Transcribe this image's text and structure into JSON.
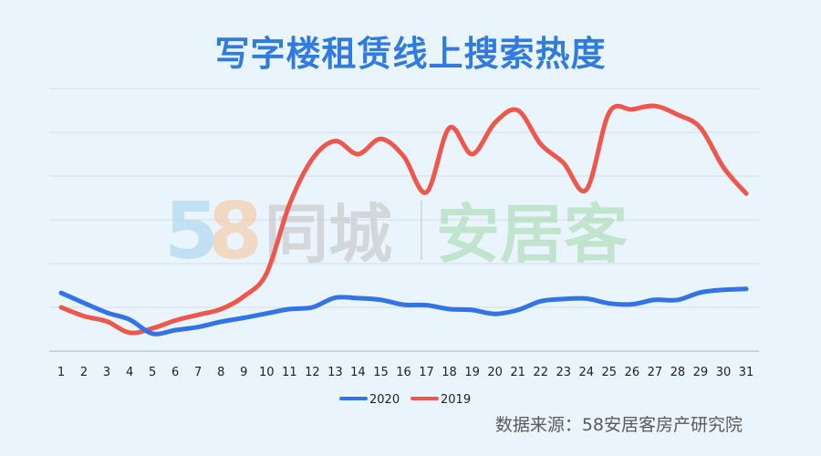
{
  "chart_data": {
    "type": "line",
    "title": "写字楼租赁线上搜索热度",
    "x": [
      "1",
      "2",
      "3",
      "4",
      "5",
      "6",
      "7",
      "8",
      "9",
      "10",
      "11",
      "12",
      "13",
      "14",
      "15",
      "16",
      "17",
      "18",
      "19",
      "20",
      "21",
      "22",
      "23",
      "24",
      "25",
      "26",
      "27",
      "28",
      "29",
      "30",
      "31"
    ],
    "ylim": [
      0,
      6
    ],
    "grid": true,
    "legend_position": "bottom",
    "series": [
      {
        "name": "2020",
        "color": "#3273e6",
        "values": [
          1.33,
          1.1,
          0.88,
          0.72,
          0.4,
          0.48,
          0.55,
          0.67,
          0.76,
          0.86,
          0.96,
          1.0,
          1.22,
          1.21,
          1.17,
          1.06,
          1.05,
          0.96,
          0.94,
          0.85,
          0.94,
          1.14,
          1.19,
          1.2,
          1.09,
          1.07,
          1.17,
          1.17,
          1.34,
          1.4,
          1.42
        ]
      },
      {
        "name": "2019",
        "color": "#f0574c",
        "values": [
          1.0,
          0.8,
          0.68,
          0.42,
          0.52,
          0.7,
          0.83,
          0.96,
          1.25,
          1.78,
          3.35,
          4.39,
          4.8,
          4.5,
          4.85,
          4.45,
          3.63,
          5.1,
          4.5,
          5.22,
          5.5,
          4.73,
          4.3,
          3.69,
          5.45,
          5.52,
          5.6,
          5.4,
          5.1,
          4.2,
          3.6
        ]
      }
    ]
  },
  "watermark": {
    "numeral": "58",
    "brand1": "同城",
    "brand2": "安居客"
  },
  "source_note": "数据来源：58安居客房产研究院"
}
